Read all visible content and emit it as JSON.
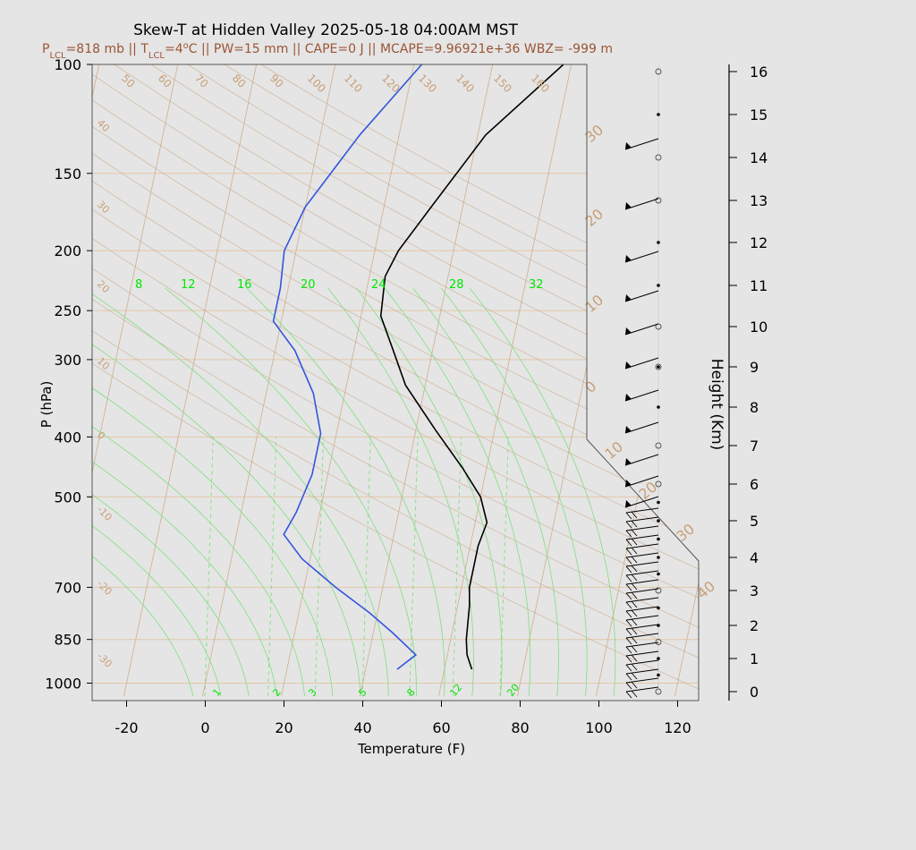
{
  "chart_data": {
    "type": "line",
    "chart_kind": "skew-t log-p sounding",
    "title": "Skew-T at Hidden Valley 2025-05-18 04:00AM MST",
    "subtitle": {
      "p_lcl_prefix": "P",
      "p_lcl_sub": "LCL",
      "p_lcl_value": "=818 mb || T",
      "t_lcl_sub": "LCL",
      "t_lcl_value": "=4",
      "deg": "o",
      "rest": "C || PW=15 mm || CAPE=0 J || MCAPE=9.96921e+36 WBZ= -999 m"
    },
    "xlabel": "Temperature (F)",
    "ylabel": "P (hPa)",
    "y2label": "Height (Km)",
    "xlim": [
      -28,
      125
    ],
    "ylim_hpa": [
      1050,
      100
    ],
    "y_scale": "log",
    "x_ticks": [
      "-20",
      "0",
      "20",
      "40",
      "60",
      "80",
      "100",
      "120"
    ],
    "x_tick_values": [
      -20,
      0,
      20,
      40,
      60,
      80,
      100,
      120
    ],
    "p_ticks": [
      "100",
      "150",
      "200",
      "250",
      "300",
      "400",
      "500",
      "700",
      "850",
      "1000"
    ],
    "p_tick_values": [
      100,
      150,
      200,
      250,
      300,
      400,
      500,
      700,
      850,
      1000
    ],
    "height_ticks": [
      "0",
      "1",
      "2",
      "3",
      "4",
      "5",
      "6",
      "7",
      "8",
      "9",
      "10",
      "11",
      "12",
      "13",
      "14",
      "15",
      "16"
    ],
    "height_tick_values": [
      0,
      1,
      2,
      3,
      4,
      5,
      6,
      7,
      8,
      9,
      10,
      11,
      12,
      13,
      14,
      15,
      16
    ],
    "theta_labels": [
      "50",
      "60",
      "70",
      "80",
      "90",
      "100",
      "110",
      "120",
      "130",
      "140",
      "150",
      "160"
    ],
    "temp_c_labels": [
      "40",
      "30",
      "20",
      "10",
      "0",
      "-10",
      "-20",
      "-30"
    ],
    "temp_c_right_labels": [
      "30",
      "20",
      "10",
      "0",
      "10",
      "20",
      "30",
      "40"
    ],
    "theta_e_labels": [
      "8",
      "12",
      "16",
      "20",
      "24",
      "28",
      "32"
    ],
    "mixing_ratio_labels": [
      "1",
      "2",
      "3",
      "5",
      "8",
      "12",
      "20"
    ],
    "series": [
      {
        "name": "",
        "color": "#000000",
        "x": [
          67,
          65,
          64,
          63,
          62,
          62,
          63,
          60,
          54,
          45,
          35,
          30,
          25,
          24,
          26,
          32,
          42,
          58
        ],
        "y": [
          950,
          900,
          850,
          750,
          700,
          600,
          550,
          500,
          450,
          390,
          330,
          290,
          255,
          220,
          200,
          170,
          130,
          100
        ]
      },
      {
        "name": "",
        "color": "#3355dd",
        "x": [
          48,
          52,
          45,
          38,
          28,
          18,
          12,
          14,
          16,
          16,
          12,
          5,
          -2,
          -2,
          -3,
          0,
          10,
          22
        ],
        "y": [
          950,
          900,
          830,
          770,
          700,
          630,
          575,
          530,
          460,
          395,
          340,
          290,
          260,
          230,
          200,
          170,
          130,
          100
        ]
      }
    ],
    "colors": {
      "background": "#e5e5e5",
      "grid": "#e3c7a7",
      "isotherm": "#c8a078",
      "moist": "#7ee07e",
      "label_green": "#00e600",
      "subtitle": "#9a5535",
      "temperature": "#000000",
      "dewpoint": "#3355dd"
    },
    "wind_profile": {
      "heights_km": [
        16,
        15,
        14,
        13,
        12,
        11,
        10,
        9,
        8,
        7,
        6,
        5.5,
        5,
        4.5,
        4,
        3.5,
        3,
        2.5,
        2,
        1.5,
        1,
        0.5,
        0
      ],
      "markers": [
        "open",
        "dot",
        "open",
        "open",
        "dot",
        "dot",
        "open",
        "both",
        "dot",
        "open",
        "open",
        "dot",
        "dot",
        "dot",
        "dot",
        "dot",
        "open",
        "dot",
        "dot",
        "open",
        "dot",
        "dot",
        "open"
      ]
    }
  }
}
